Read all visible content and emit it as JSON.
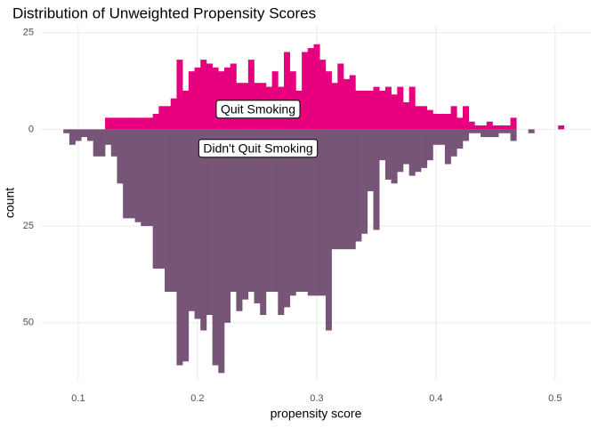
{
  "chart_data": {
    "type": "histogram",
    "title": "Distribution of Unweighted Propensity Scores",
    "x_label": "propensity score",
    "y_label": "count",
    "bins": [
      0.0875,
      0.0925,
      0.0975,
      0.1025,
      0.1075,
      0.1125,
      0.1175,
      0.1225,
      0.1275,
      0.1325,
      0.1375,
      0.1425,
      0.1475,
      0.1525,
      0.1575,
      0.1625,
      0.1675,
      0.1725,
      0.1775,
      0.1825,
      0.1875,
      0.1925,
      0.1975,
      0.2025,
      0.2075,
      0.2125,
      0.2175,
      0.2225,
      0.2275,
      0.2325,
      0.2375,
      0.2425,
      0.2475,
      0.2525,
      0.2575,
      0.2625,
      0.2675,
      0.2725,
      0.2775,
      0.2825,
      0.2875,
      0.2925,
      0.2975,
      0.3025,
      0.3075,
      0.3125,
      0.3175,
      0.3225,
      0.3275,
      0.3325,
      0.3375,
      0.3425,
      0.3475,
      0.3525,
      0.3575,
      0.3625,
      0.3675,
      0.3725,
      0.3775,
      0.3825,
      0.3875,
      0.3925,
      0.3975,
      0.4025,
      0.4075,
      0.4125,
      0.4175,
      0.4225,
      0.4275,
      0.4325,
      0.4375,
      0.4425,
      0.4475,
      0.4525,
      0.4575,
      0.4625,
      0.4675,
      0.4725,
      0.4775,
      0.4825,
      0.4875,
      0.4925,
      0.4975,
      0.5025,
      0.5075
    ],
    "series": [
      {
        "name": "Quit Smoking",
        "color": "#e6007e",
        "values": [
          0,
          0,
          0,
          0,
          0,
          0,
          0,
          3,
          3,
          3,
          3,
          3,
          3,
          3,
          3,
          4,
          6,
          6,
          8,
          18,
          10,
          15,
          16,
          18,
          17,
          16,
          15,
          16,
          17,
          12,
          12,
          18,
          12,
          12,
          11,
          15,
          11,
          20,
          15,
          10,
          20,
          21,
          22,
          18,
          15,
          12,
          17,
          13,
          14,
          10,
          10,
          10,
          11,
          10,
          11,
          9,
          11,
          7,
          11,
          6,
          6,
          5,
          4,
          4,
          4,
          6,
          3,
          6,
          2,
          1,
          1,
          2,
          1,
          1,
          1,
          3,
          0,
          0,
          0,
          0,
          0,
          0,
          0,
          1
        ]
      },
      {
        "name": "Didn't Quit Smoking",
        "color": "#775577",
        "values": [
          -1,
          -4,
          -3,
          -2,
          -3,
          -7,
          -7,
          -4,
          -7,
          -14,
          -23,
          -23,
          -24,
          -25,
          -25,
          -36,
          -36,
          -42,
          -42,
          -61,
          -60,
          -47,
          -49,
          -52,
          -48,
          -61,
          -63,
          -50,
          -42,
          -47,
          -44,
          -42,
          -45,
          -48,
          -42,
          -42,
          -48,
          -46,
          -43,
          -42,
          -42,
          -43,
          -43,
          -43,
          -52,
          -31,
          -31,
          -31,
          -31,
          -29,
          -27,
          -16,
          -26,
          -8,
          -13,
          -14,
          -11,
          -9,
          -12,
          -11,
          -10,
          -8,
          -4,
          -4,
          -9,
          -7,
          -5,
          -3,
          -1,
          -1,
          -2,
          -2,
          -2,
          -1,
          -1,
          -3,
          0,
          0,
          -1,
          0,
          0,
          0,
          0,
          0
        ]
      }
    ],
    "xlim": [
      0.0687,
      0.53
    ],
    "xticks": [
      0.1,
      0.2,
      0.3,
      0.4,
      0.5
    ],
    "ylim": [
      -65,
      27
    ],
    "yticks": [
      25,
      0,
      {
        "value": -25,
        "label": "25"
      },
      {
        "value": -50,
        "label": "50"
      }
    ],
    "grid": true
  }
}
